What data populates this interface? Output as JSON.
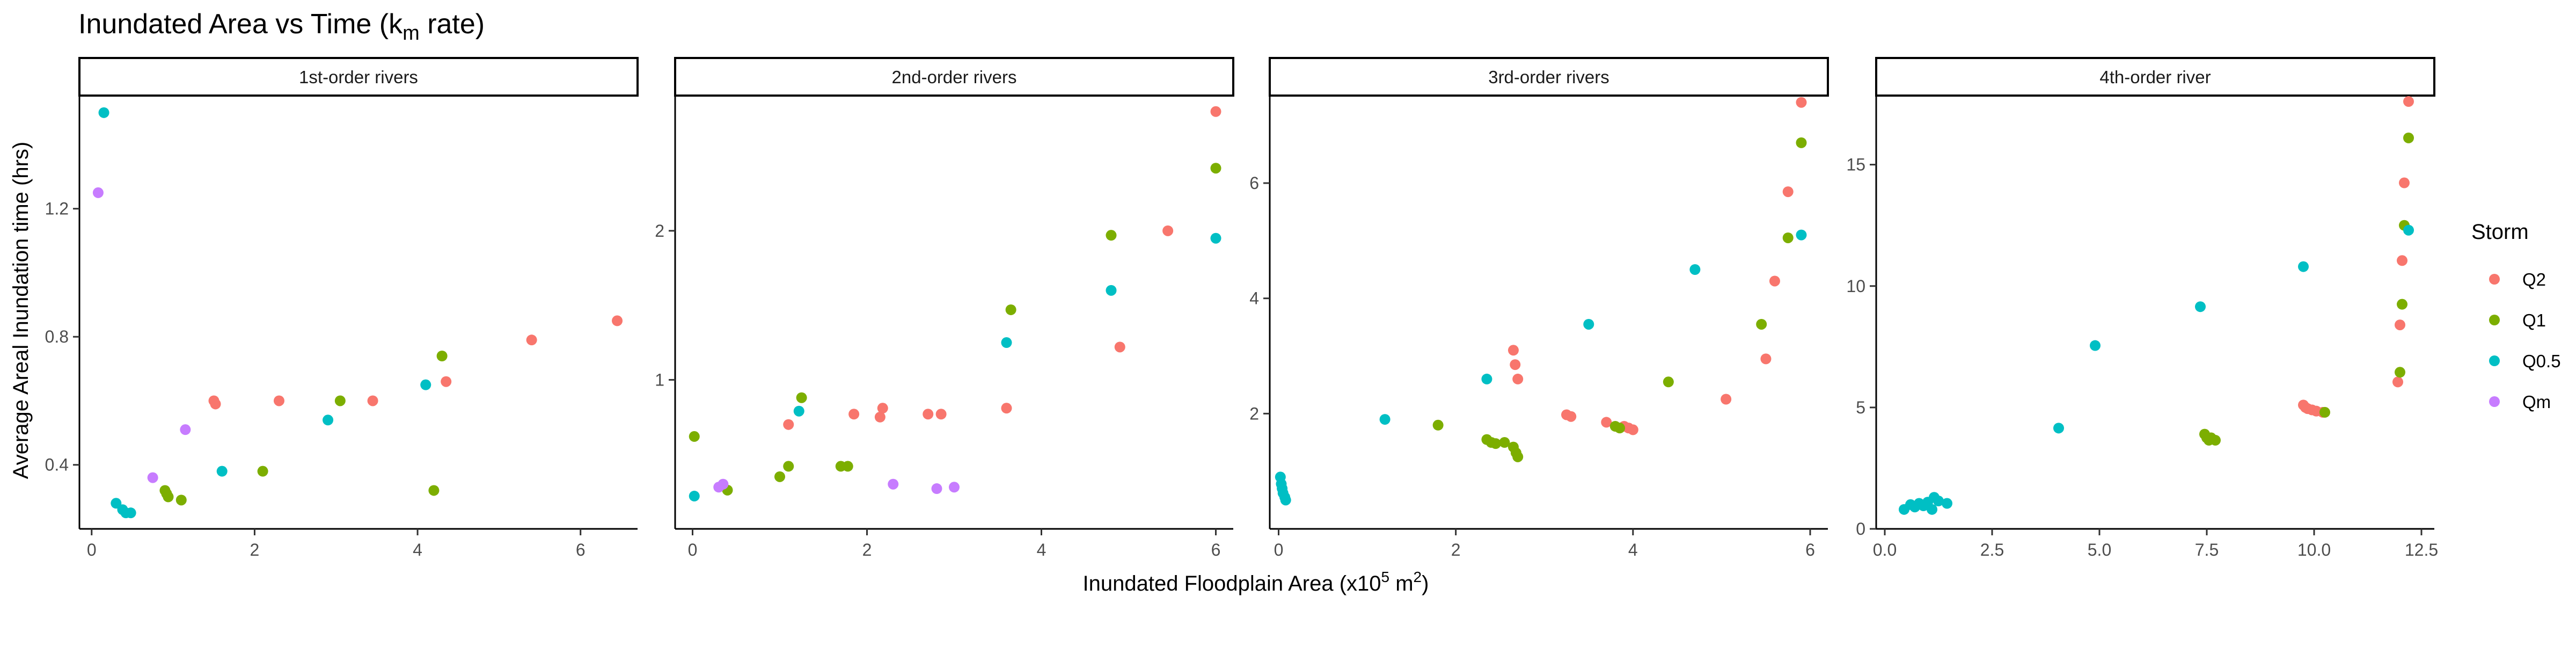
{
  "title_main": "Inundated Area vs Time (k",
  "title_sub": "m",
  "title_end": " rate)",
  "xlabel_main": "Inundated Floodplain Area (x10",
  "xlabel_sup": "5",
  "xlabel_end": " m",
  "xlabel_sup2": "2",
  "xlabel_close": ")",
  "ylabel": "Average Areal Inundation time (hrs)",
  "legend": {
    "title": "Storm",
    "placement": "right",
    "items": [
      {
        "label": "Q2",
        "color": "#F8766D"
      },
      {
        "label": "Q1",
        "color": "#7CAE00"
      },
      {
        "label": "Q0.5",
        "color": "#00BFC4"
      },
      {
        "label": "Qm",
        "color": "#C77CFF"
      }
    ]
  },
  "chart_data": [
    {
      "type": "scatter",
      "title": "1st-order rivers",
      "xlim": [
        -0.15,
        6.7
      ],
      "ylim": [
        0.2,
        1.55
      ],
      "xticks": [
        0,
        2,
        4,
        6
      ],
      "yticks": [
        0.4,
        0.8,
        1.2
      ],
      "xtick_labels": [
        "0",
        "2",
        "4",
        "6"
      ],
      "ytick_labels": [
        "0.4",
        "0.8",
        "1.2"
      ],
      "series": [
        {
          "name": "Q2",
          "points": [
            [
              1.5,
              0.6
            ],
            [
              1.52,
              0.59
            ],
            [
              2.3,
              0.6
            ],
            [
              3.45,
              0.6
            ],
            [
              4.35,
              0.66
            ],
            [
              5.4,
              0.79
            ],
            [
              6.45,
              0.85
            ]
          ]
        },
        {
          "name": "Q1",
          "points": [
            [
              0.9,
              0.32
            ],
            [
              0.92,
              0.31
            ],
            [
              0.94,
              0.3
            ],
            [
              1.1,
              0.29
            ],
            [
              2.1,
              0.38
            ],
            [
              3.05,
              0.6
            ],
            [
              4.2,
              0.32
            ],
            [
              4.3,
              0.74
            ]
          ]
        },
        {
          "name": "Q0.5",
          "points": [
            [
              0.15,
              1.5
            ],
            [
              0.3,
              0.28
            ],
            [
              0.38,
              0.26
            ],
            [
              0.42,
              0.25
            ],
            [
              0.48,
              0.25
            ],
            [
              1.6,
              0.38
            ],
            [
              2.9,
              0.54
            ],
            [
              4.1,
              0.65
            ]
          ]
        },
        {
          "name": "Qm",
          "points": [
            [
              0.08,
              1.25
            ],
            [
              0.75,
              0.36
            ],
            [
              1.15,
              0.51
            ]
          ]
        }
      ]
    },
    {
      "type": "scatter",
      "title": "2nd-order rivers",
      "xlim": [
        -0.2,
        6.2
      ],
      "ylim": [
        0.0,
        2.9
      ],
      "xticks": [
        0,
        2,
        4,
        6
      ],
      "yticks": [
        1,
        2
      ],
      "xtick_labels": [
        "0",
        "2",
        "4",
        "6"
      ],
      "ytick_labels": [
        "1",
        "2"
      ],
      "series": [
        {
          "name": "Q2",
          "points": [
            [
              1.1,
              0.7
            ],
            [
              1.85,
              0.77
            ],
            [
              2.15,
              0.75
            ],
            [
              2.18,
              0.81
            ],
            [
              2.7,
              0.77
            ],
            [
              2.85,
              0.77
            ],
            [
              3.6,
              0.81
            ],
            [
              4.9,
              1.22
            ],
            [
              5.45,
              2.0
            ],
            [
              6.0,
              2.8
            ]
          ]
        },
        {
          "name": "Q1",
          "points": [
            [
              0.02,
              0.62
            ],
            [
              0.4,
              0.26
            ],
            [
              1.0,
              0.35
            ],
            [
              1.1,
              0.42
            ],
            [
              1.25,
              0.88
            ],
            [
              1.7,
              0.42
            ],
            [
              1.78,
              0.42
            ],
            [
              3.65,
              1.47
            ],
            [
              4.8,
              1.97
            ],
            [
              6.0,
              2.42
            ]
          ]
        },
        {
          "name": "Q0.5",
          "points": [
            [
              0.02,
              0.22
            ],
            [
              1.22,
              0.79
            ],
            [
              3.6,
              1.25
            ],
            [
              4.8,
              1.6
            ],
            [
              6.0,
              1.95
            ]
          ]
        },
        {
          "name": "Qm",
          "points": [
            [
              0.3,
              0.28
            ],
            [
              0.35,
              0.3
            ],
            [
              2.3,
              0.3
            ],
            [
              2.8,
              0.27
            ],
            [
              3.0,
              0.28
            ]
          ]
        }
      ]
    },
    {
      "type": "scatter",
      "title": "3rd-order rivers",
      "xlim": [
        -0.1,
        6.2
      ],
      "ylim": [
        0.0,
        7.5
      ],
      "xticks": [
        0,
        2,
        4,
        6
      ],
      "yticks": [
        2,
        4,
        6
      ],
      "xtick_labels": [
        "0",
        "2",
        "4",
        "6"
      ],
      "ytick_labels": [
        "2",
        "4",
        "6"
      ],
      "series": [
        {
          "name": "Q2",
          "points": [
            [
              2.65,
              3.1
            ],
            [
              2.67,
              2.85
            ],
            [
              2.7,
              2.6
            ],
            [
              3.25,
              1.98
            ],
            [
              3.3,
              1.95
            ],
            [
              3.7,
              1.85
            ],
            [
              3.9,
              1.78
            ],
            [
              3.95,
              1.75
            ],
            [
              4.0,
              1.72
            ],
            [
              5.05,
              2.25
            ],
            [
              5.5,
              2.95
            ],
            [
              5.6,
              4.3
            ],
            [
              5.75,
              5.85
            ],
            [
              5.9,
              7.4
            ]
          ]
        },
        {
          "name": "Q1",
          "points": [
            [
              1.8,
              1.8
            ],
            [
              2.35,
              1.55
            ],
            [
              2.4,
              1.5
            ],
            [
              2.45,
              1.48
            ],
            [
              2.55,
              1.5
            ],
            [
              2.65,
              1.42
            ],
            [
              2.68,
              1.32
            ],
            [
              2.7,
              1.25
            ],
            [
              3.8,
              1.78
            ],
            [
              3.85,
              1.75
            ],
            [
              4.4,
              2.55
            ],
            [
              5.45,
              3.55
            ],
            [
              5.75,
              5.05
            ],
            [
              5.9,
              6.7
            ]
          ]
        },
        {
          "name": "Q0.5",
          "points": [
            [
              0.02,
              0.9
            ],
            [
              0.03,
              0.78
            ],
            [
              0.04,
              0.7
            ],
            [
              0.05,
              0.62
            ],
            [
              0.07,
              0.55
            ],
            [
              0.08,
              0.5
            ],
            [
              1.2,
              1.9
            ],
            [
              2.35,
              2.6
            ],
            [
              3.5,
              3.55
            ],
            [
              4.7,
              4.5
            ],
            [
              5.9,
              5.1
            ]
          ]
        },
        {
          "name": "Qm",
          "points": []
        }
      ]
    },
    {
      "type": "scatter",
      "title": "4th-order river",
      "xlim": [
        -0.2,
        12.8
      ],
      "ylim": [
        0.0,
        17.8
      ],
      "xticks": [
        0,
        2.5,
        5,
        7.5,
        10,
        12.5
      ],
      "yticks": [
        0,
        5,
        10,
        15
      ],
      "xtick_labels": [
        "0.0",
        "2.5",
        "5.0",
        "7.5",
        "10.0",
        "12.5"
      ],
      "ytick_labels": [
        "0",
        "5",
        "10",
        "15"
      ],
      "series": [
        {
          "name": "Q2",
          "points": [
            [
              9.75,
              5.1
            ],
            [
              9.8,
              5.0
            ],
            [
              9.85,
              4.95
            ],
            [
              9.95,
              4.9
            ],
            [
              10.05,
              4.85
            ],
            [
              10.2,
              4.8
            ],
            [
              11.95,
              6.05
            ],
            [
              12.0,
              8.4
            ],
            [
              12.05,
              11.05
            ],
            [
              12.1,
              14.25
            ],
            [
              12.2,
              17.6
            ]
          ]
        },
        {
          "name": "Q1",
          "points": [
            [
              7.45,
              3.9
            ],
            [
              7.5,
              3.75
            ],
            [
              7.55,
              3.65
            ],
            [
              7.6,
              3.75
            ],
            [
              7.7,
              3.65
            ],
            [
              10.25,
              4.8
            ],
            [
              12.0,
              6.45
            ],
            [
              12.05,
              9.25
            ],
            [
              12.1,
              12.5
            ],
            [
              12.2,
              16.1
            ]
          ]
        },
        {
          "name": "Q0.5",
          "points": [
            [
              0.45,
              0.8
            ],
            [
              0.6,
              1.0
            ],
            [
              0.7,
              0.9
            ],
            [
              0.8,
              1.05
            ],
            [
              0.9,
              0.95
            ],
            [
              1.0,
              1.1
            ],
            [
              1.1,
              0.8
            ],
            [
              1.15,
              1.3
            ],
            [
              1.25,
              1.15
            ],
            [
              1.45,
              1.05
            ],
            [
              4.05,
              4.15
            ],
            [
              4.9,
              7.55
            ],
            [
              7.35,
              9.15
            ],
            [
              9.75,
              10.8
            ],
            [
              12.2,
              12.3
            ]
          ]
        },
        {
          "name": "Qm",
          "points": []
        }
      ]
    }
  ]
}
